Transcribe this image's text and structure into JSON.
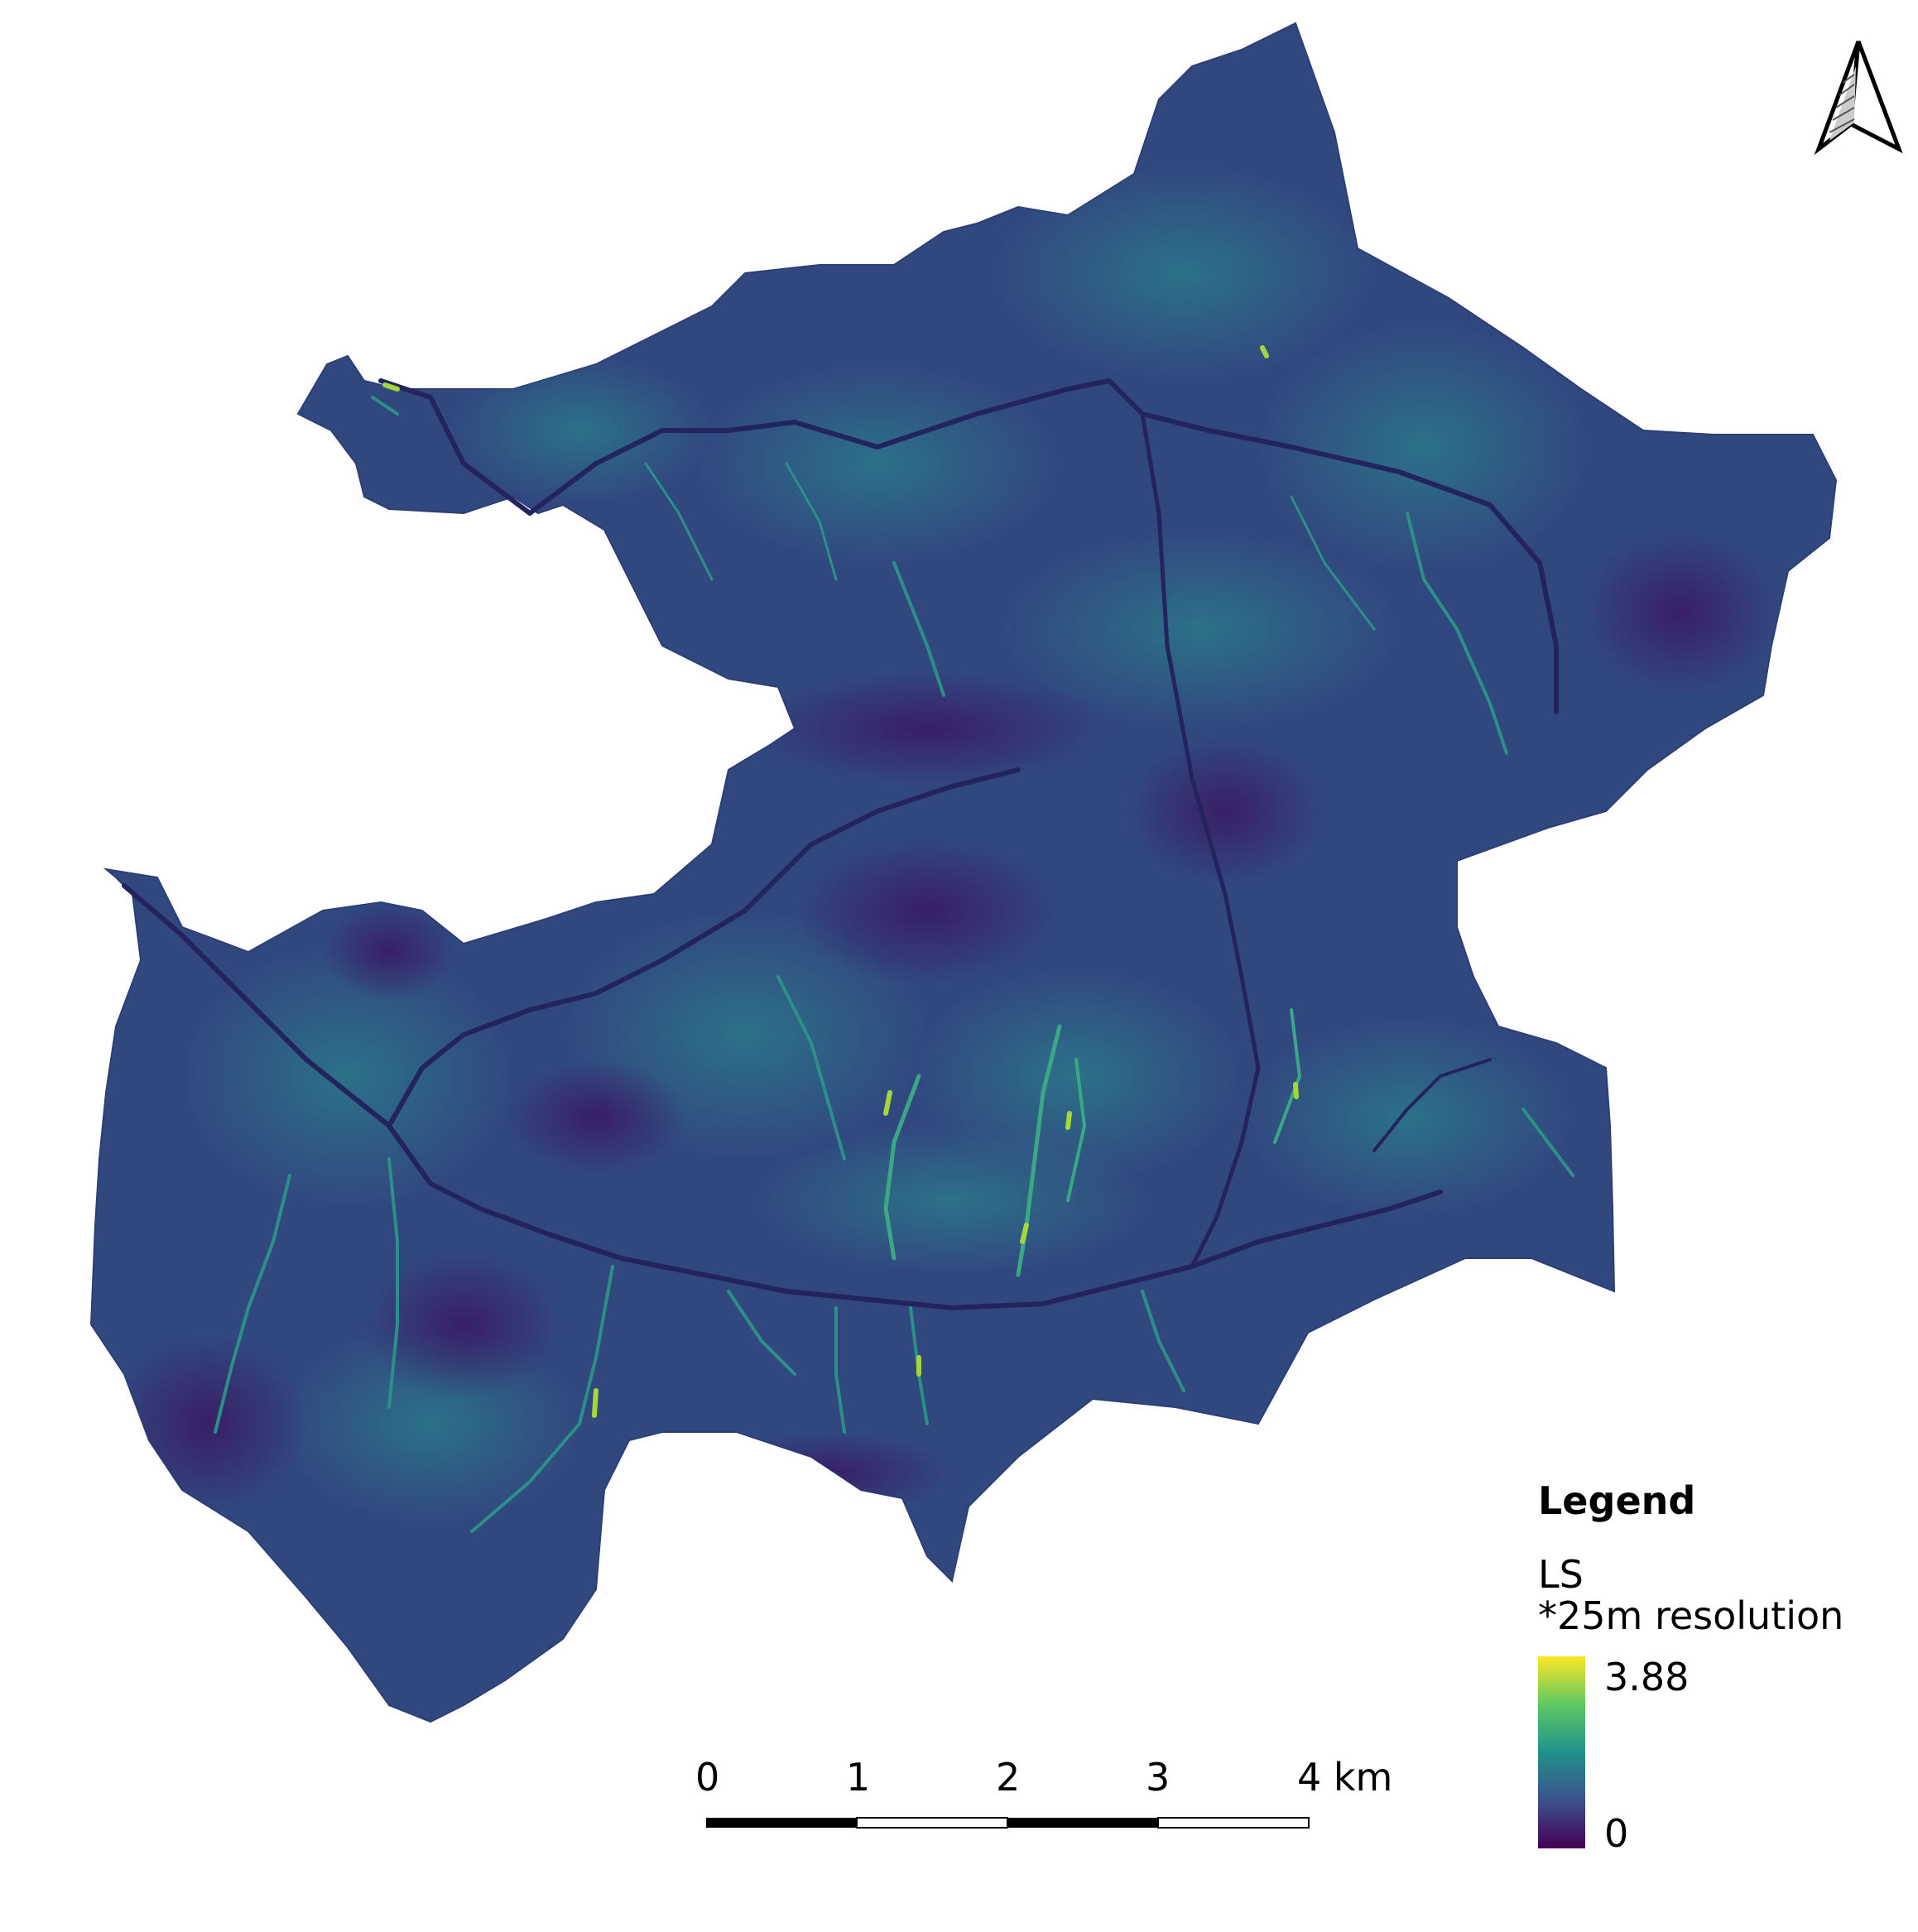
{
  "legend": {
    "title": "Legend",
    "layer_name": "LS",
    "layer_note": "*25m resolution",
    "ramp_max": "3.88",
    "ramp_min": "0",
    "ramp_colors": [
      "#fde725",
      "#5ec962",
      "#21918c",
      "#3b528b",
      "#440154"
    ]
  },
  "scale_bar": {
    "labels": [
      "0",
      "1",
      "2",
      "3",
      "4 km"
    ]
  },
  "north_arrow": {
    "icon": "north-arrow-icon"
  },
  "map_colors": {
    "base": "#31487f",
    "dark": "#3a1f6b",
    "stream": "#22205a",
    "highlight": "#2a8d8a",
    "bright": "#b8de29"
  }
}
